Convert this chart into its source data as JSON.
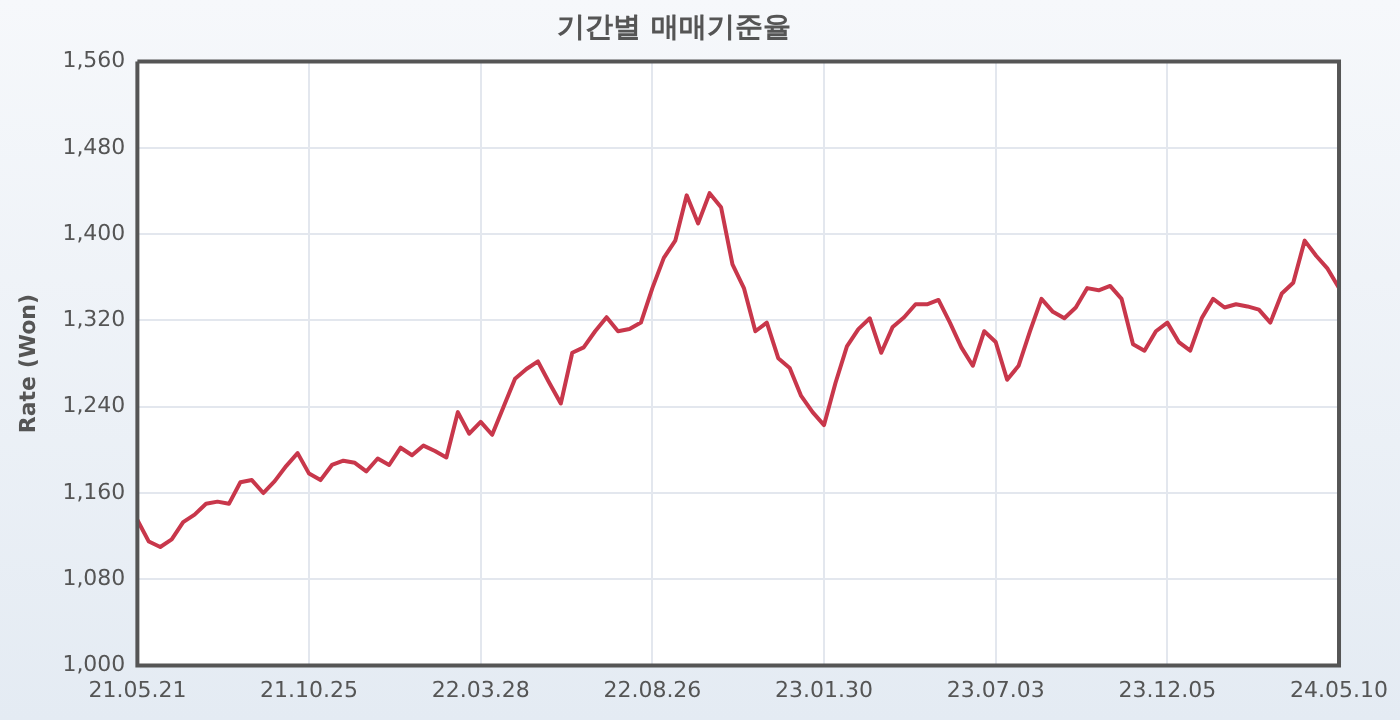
{
  "chart_data": {
    "type": "line",
    "title": "기간별 매매기준율",
    "ylabel": "Rate (Won)",
    "categories": [
      "21.05.21",
      null,
      null,
      null,
      null,
      null,
      null,
      null,
      null,
      null,
      null,
      null,
      null,
      null,
      null,
      "21.10.25",
      null,
      null,
      null,
      null,
      null,
      null,
      null,
      null,
      null,
      null,
      null,
      null,
      null,
      null,
      "22.03.28",
      null,
      null,
      null,
      null,
      null,
      null,
      null,
      null,
      null,
      null,
      null,
      null,
      null,
      null,
      "22.08.26",
      null,
      null,
      null,
      null,
      null,
      null,
      null,
      null,
      null,
      null,
      null,
      null,
      null,
      null,
      "23.01.30",
      null,
      null,
      null,
      null,
      null,
      null,
      null,
      null,
      null,
      null,
      null,
      null,
      null,
      null,
      "23.07.03",
      null,
      null,
      null,
      null,
      null,
      null,
      null,
      null,
      null,
      null,
      null,
      null,
      null,
      null,
      "23.12.05",
      null,
      null,
      null,
      null,
      null,
      null,
      null,
      null,
      null,
      null,
      null,
      null,
      null,
      null,
      "24.05.10"
    ],
    "series": [
      {
        "color": "#c8374b",
        "values": [
          1135,
          1115,
          1110,
          1117,
          1133,
          1140,
          1150,
          1152,
          1150,
          1170,
          1172,
          1160,
          1171,
          1185,
          1197,
          1178,
          1172,
          1186,
          1190,
          1188,
          1180,
          1192,
          1186,
          1202,
          1195,
          1204,
          1199,
          1193,
          1235,
          1215,
          1226,
          1214,
          1240,
          1266,
          1275,
          1282,
          1262,
          1243,
          1290,
          1295,
          1310,
          1323,
          1310,
          1312,
          1318,
          1350,
          1378,
          1394,
          1436,
          1410,
          1438,
          1425,
          1372,
          1350,
          1310,
          1318,
          1285,
          1276,
          1250,
          1235,
          1223,
          1262,
          1296,
          1312,
          1322,
          1290,
          1314,
          1323,
          1335,
          1335,
          1339,
          1318,
          1295,
          1278,
          1310,
          1300,
          1265,
          1278,
          1310,
          1340,
          1328,
          1322,
          1332,
          1350,
          1348,
          1352,
          1340,
          1298,
          1292,
          1310,
          1318,
          1300,
          1292,
          1322,
          1340,
          1332,
          1335,
          1333,
          1330,
          1318,
          1345,
          1355,
          1394,
          1380,
          1368,
          1350
        ]
      }
    ],
    "ylim": [
      1000,
      1560
    ],
    "yticks": [
      {
        "value": 1000,
        "label": "1,000"
      },
      {
        "value": 1080,
        "label": "1,080"
      },
      {
        "value": 1160,
        "label": "1,160"
      },
      {
        "value": 1240,
        "label": "1,240"
      },
      {
        "value": 1320,
        "label": "1,320"
      },
      {
        "value": 1400,
        "label": "1,400"
      },
      {
        "value": 1480,
        "label": "1,480"
      },
      {
        "value": 1560,
        "label": "1,560"
      }
    ],
    "grid": true,
    "legend": false,
    "marker": "none",
    "line_style": "solid"
  }
}
